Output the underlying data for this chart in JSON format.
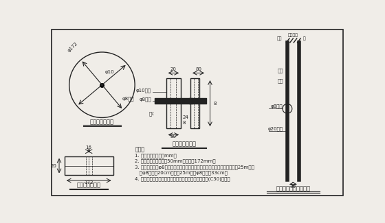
{
  "bg_color": "#f0ede8",
  "line_color": "#222222",
  "caption1": "顶夹正显示意图",
  "caption2": "顶夹侧显示意图",
  "caption3": "顶夹土显示意图",
  "caption4": "孔内顶夹断面显示意图",
  "note_title": "说明：",
  "notes": [
    "1. 图中尺寸单位均为mm。",
    "2. 混凝土保护层厚度为50mm，直径为172mm。",
    "3. 当混凝土水用φ8的钉头拉钱钉筋笼外侧，面堆而连接血水的位置。小桩设25m范围",
    "   内φ8间距取20cm，桩设25m以下φ8长度取33cm。",
    "4. 细筒混凝土水应采用伸性多项混凝土等级的常规流水(C30)产品。"
  ]
}
